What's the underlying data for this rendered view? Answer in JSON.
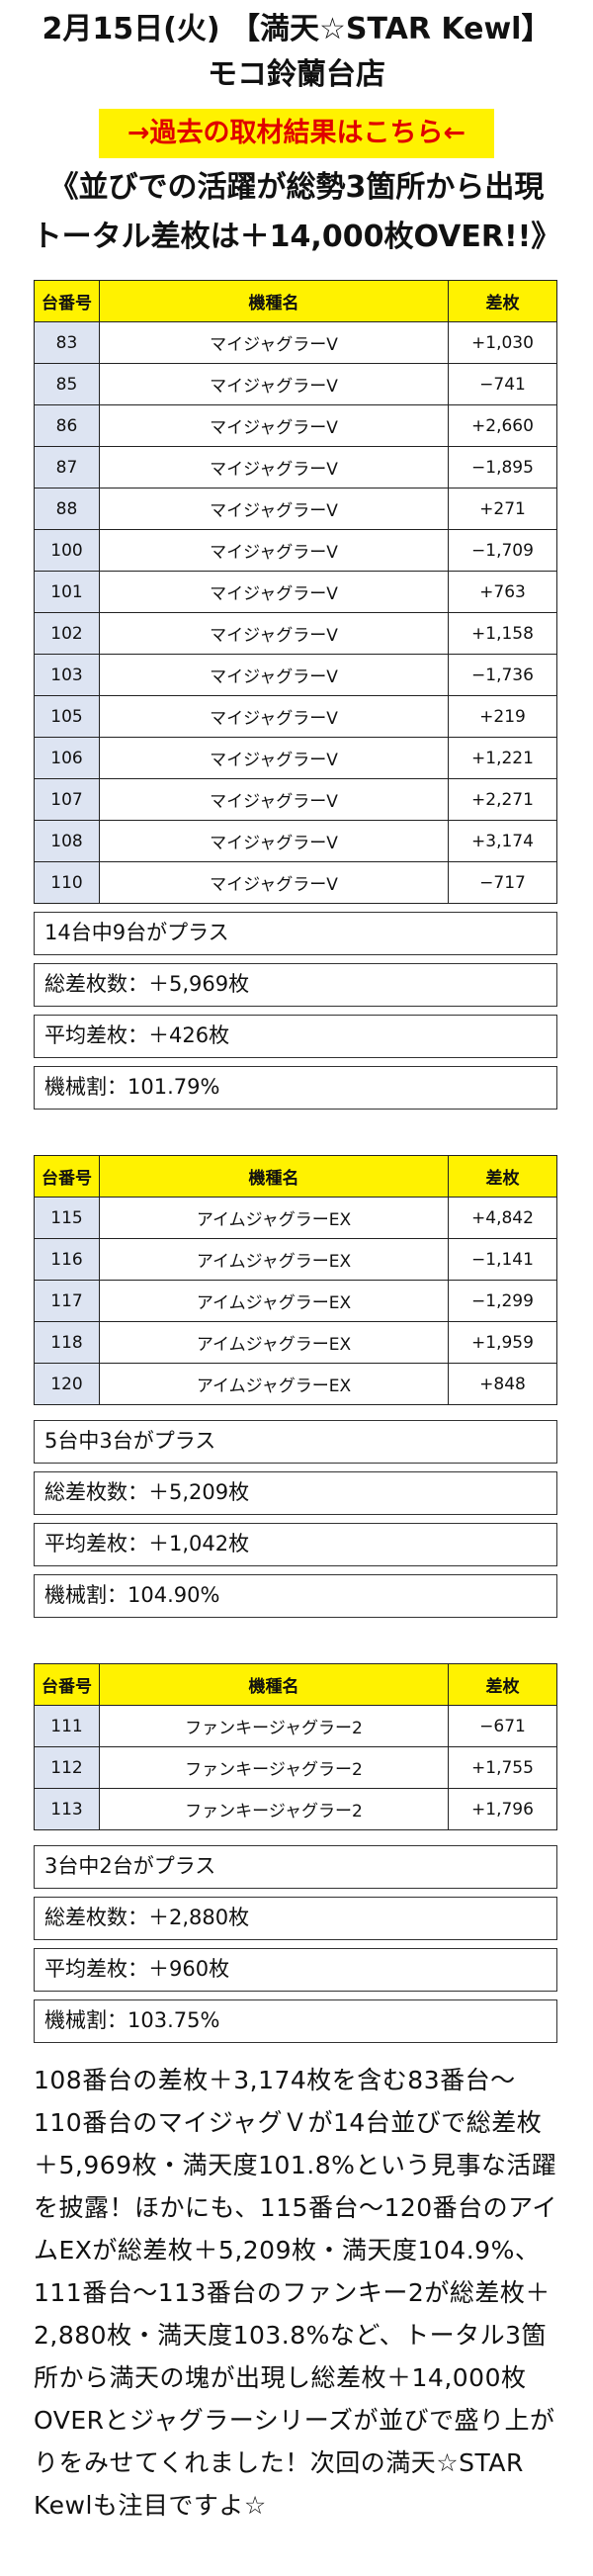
{
  "header": {
    "line1": "2月15日(火) 【満天☆STAR Kewl】",
    "line2": "モコ鈴蘭台店"
  },
  "past_link": "→過去の取材結果はこちら←",
  "headline": {
    "line1": "《並びでの活躍が総勢3箇所から出現",
    "line2": "トータル差枚は＋14,000枚OVER!!》"
  },
  "columns": {
    "num": "台番号",
    "name": "機種名",
    "diff": "差枚"
  },
  "groups": [
    {
      "rows": [
        {
          "num": "83",
          "name": "マイジャグラーV",
          "diff": "+1,030"
        },
        {
          "num": "85",
          "name": "マイジャグラーV",
          "diff": "−741"
        },
        {
          "num": "86",
          "name": "マイジャグラーV",
          "diff": "+2,660"
        },
        {
          "num": "87",
          "name": "マイジャグラーV",
          "diff": "−1,895"
        },
        {
          "num": "88",
          "name": "マイジャグラーV",
          "diff": "+271"
        },
        {
          "num": "100",
          "name": "マイジャグラーV",
          "diff": "−1,709"
        },
        {
          "num": "101",
          "name": "マイジャグラーV",
          "diff": "+763"
        },
        {
          "num": "102",
          "name": "マイジャグラーV",
          "diff": "+1,158"
        },
        {
          "num": "103",
          "name": "マイジャグラーV",
          "diff": "−1,736"
        },
        {
          "num": "105",
          "name": "マイジャグラーV",
          "diff": "+219"
        },
        {
          "num": "106",
          "name": "マイジャグラーV",
          "diff": "+1,221"
        },
        {
          "num": "107",
          "name": "マイジャグラーV",
          "diff": "+2,271"
        },
        {
          "num": "108",
          "name": "マイジャグラーV",
          "diff": "+3,174"
        },
        {
          "num": "110",
          "name": "マイジャグラーV",
          "diff": "−717"
        }
      ],
      "stats": [
        "14台中9台がプラス",
        "総差枚数：＋5,969枚",
        "平均差枚：＋426枚",
        "機械割：101.79%"
      ]
    },
    {
      "rows": [
        {
          "num": "115",
          "name": "アイムジャグラーEX",
          "diff": "+4,842"
        },
        {
          "num": "116",
          "name": "アイムジャグラーEX",
          "diff": "−1,141"
        },
        {
          "num": "117",
          "name": "アイムジャグラーEX",
          "diff": "−1,299"
        },
        {
          "num": "118",
          "name": "アイムジャグラーEX",
          "diff": "+1,959"
        },
        {
          "num": "120",
          "name": "アイムジャグラーEX",
          "diff": "+848"
        }
      ],
      "stats": [
        "5台中3台がプラス",
        "総差枚数：＋5,209枚",
        "平均差枚：＋1,042枚",
        "機械割：104.90%"
      ]
    },
    {
      "rows": [
        {
          "num": "111",
          "name": "ファンキージャグラー2",
          "diff": "−671"
        },
        {
          "num": "112",
          "name": "ファンキージャグラー2",
          "diff": "+1,755"
        },
        {
          "num": "113",
          "name": "ファンキージャグラー2",
          "diff": "+1,796"
        }
      ],
      "stats": [
        "3台中2台がプラス",
        "総差枚数：＋2,880枚",
        "平均差枚：＋960枚",
        "機械割：103.75%"
      ]
    }
  ],
  "body_text": "108番台の差枚＋3,174枚を含む83番台〜110番台のマイジャグＶが14台並びで総差枚＋5,969枚・満天度101.8%という見事な活躍を披露！ほかにも、115番台〜120番台のアイムEXが総差枚＋5,209枚・満天度104.9%、111番台〜113番台のファンキー2が総差枚＋2,880枚・満天度103.8%など、トータル3箇所から満天の塊が出現し総差枚＋14,000枚OVERとジャグラーシリーズが並びで盛り上がりをみせてくれました！次回の満天☆STAR Kewlも注目ですよ☆"
}
